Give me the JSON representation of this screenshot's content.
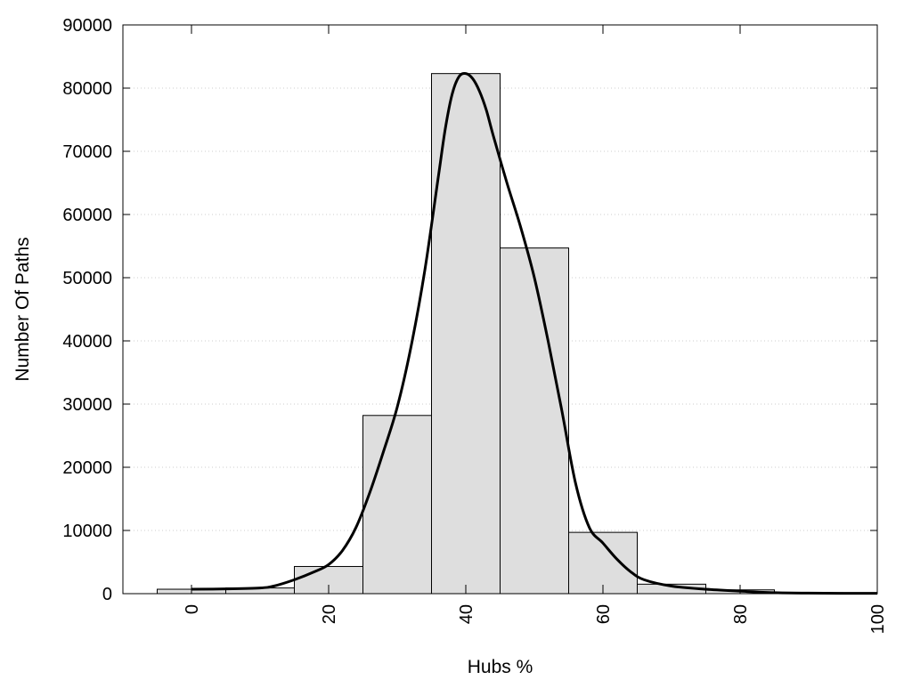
{
  "chart_data": {
    "type": "bar",
    "title": "",
    "xlabel": "Hubs %",
    "ylabel": "Number Of Paths",
    "xlim": [
      -10,
      100
    ],
    "ylim": [
      0,
      90000
    ],
    "x_ticks": [
      0,
      20,
      40,
      60,
      80,
      100
    ],
    "y_ticks": [
      0,
      10000,
      20000,
      30000,
      40000,
      50000,
      60000,
      70000,
      80000,
      90000
    ],
    "grid": "horizontal dotted",
    "legend": "none",
    "colors": {
      "bar_fill": "#dedede",
      "bar_stroke": "#000000",
      "curve": "#000000",
      "grid": "#cccccc"
    },
    "bins": [
      {
        "x0": -5,
        "x1": 5,
        "value": 700
      },
      {
        "x0": 5,
        "x1": 15,
        "value": 900
      },
      {
        "x0": 15,
        "x1": 25,
        "value": 4300
      },
      {
        "x0": 25,
        "x1": 35,
        "value": 28200
      },
      {
        "x0": 35,
        "x1": 45,
        "value": 82300
      },
      {
        "x0": 45,
        "x1": 55,
        "value": 54700
      },
      {
        "x0": 55,
        "x1": 65,
        "value": 9700
      },
      {
        "x0": 65,
        "x1": 75,
        "value": 1500
      },
      {
        "x0": 75,
        "x1": 85,
        "value": 600
      },
      {
        "x0": 85,
        "x1": 95,
        "value": 150
      }
    ],
    "curve": {
      "x": [
        0,
        5,
        10,
        12,
        15,
        18,
        20,
        22,
        24,
        26,
        28,
        30,
        32,
        34,
        36,
        37,
        38,
        39,
        40,
        41,
        42,
        43,
        44,
        46,
        48,
        50,
        52,
        54,
        56,
        58,
        60,
        62,
        64,
        66,
        70,
        75,
        80,
        85,
        90,
        95,
        100
      ],
      "y": [
        700,
        750,
        900,
        1200,
        2200,
        3500,
        4600,
        6800,
        10500,
        16000,
        22500,
        29500,
        39000,
        51000,
        66000,
        73500,
        79000,
        81800,
        82300,
        81500,
        79500,
        76500,
        72500,
        65000,
        58000,
        50000,
        40000,
        29000,
        17500,
        10500,
        8000,
        5500,
        3500,
        2200,
        1200,
        700,
        400,
        150,
        80,
        60,
        50
      ]
    }
  }
}
